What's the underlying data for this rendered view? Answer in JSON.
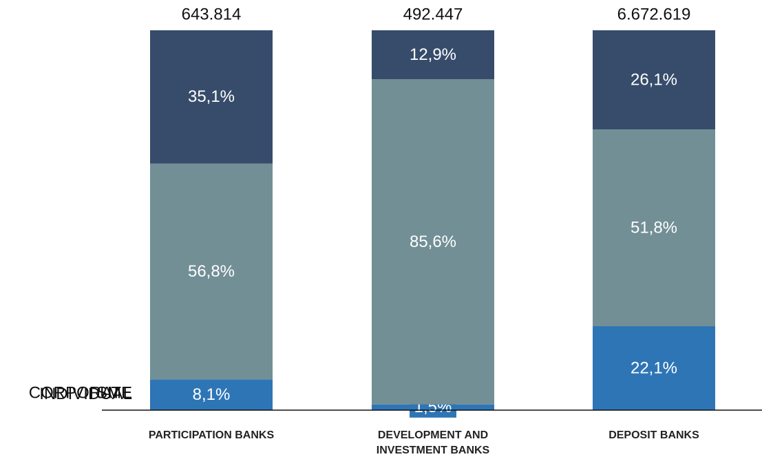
{
  "chart_data": {
    "type": "stacked_bar_100",
    "categories": [
      "PARTICIPATION BANKS",
      "DEVELOPMENT AND INVESTMENT BANKS",
      "DEPOSIT BANKS"
    ],
    "series": [
      {
        "name": "INDIVIDUAL",
        "color": "#2e75b6",
        "values": [
          8.1,
          1.5,
          22.1
        ],
        "value_labels": [
          "8,1%",
          "1,5%",
          "22,1%"
        ]
      },
      {
        "name": "CORPORATE",
        "color": "#728f96",
        "values": [
          56.8,
          85.6,
          51.8
        ],
        "value_labels": [
          "56,8%",
          "85,6%",
          "51,8%"
        ]
      },
      {
        "name": "SME",
        "color": "#374c6b",
        "values": [
          35.1,
          12.9,
          26.1
        ],
        "value_labels": [
          "35,1%",
          "12,9%",
          "26,1%"
        ]
      }
    ],
    "totals": [
      643814,
      492447,
      6672619
    ],
    "total_labels": [
      "643.814",
      "492.447",
      "6.672.619"
    ],
    "ylim": [
      0,
      100
    ]
  }
}
